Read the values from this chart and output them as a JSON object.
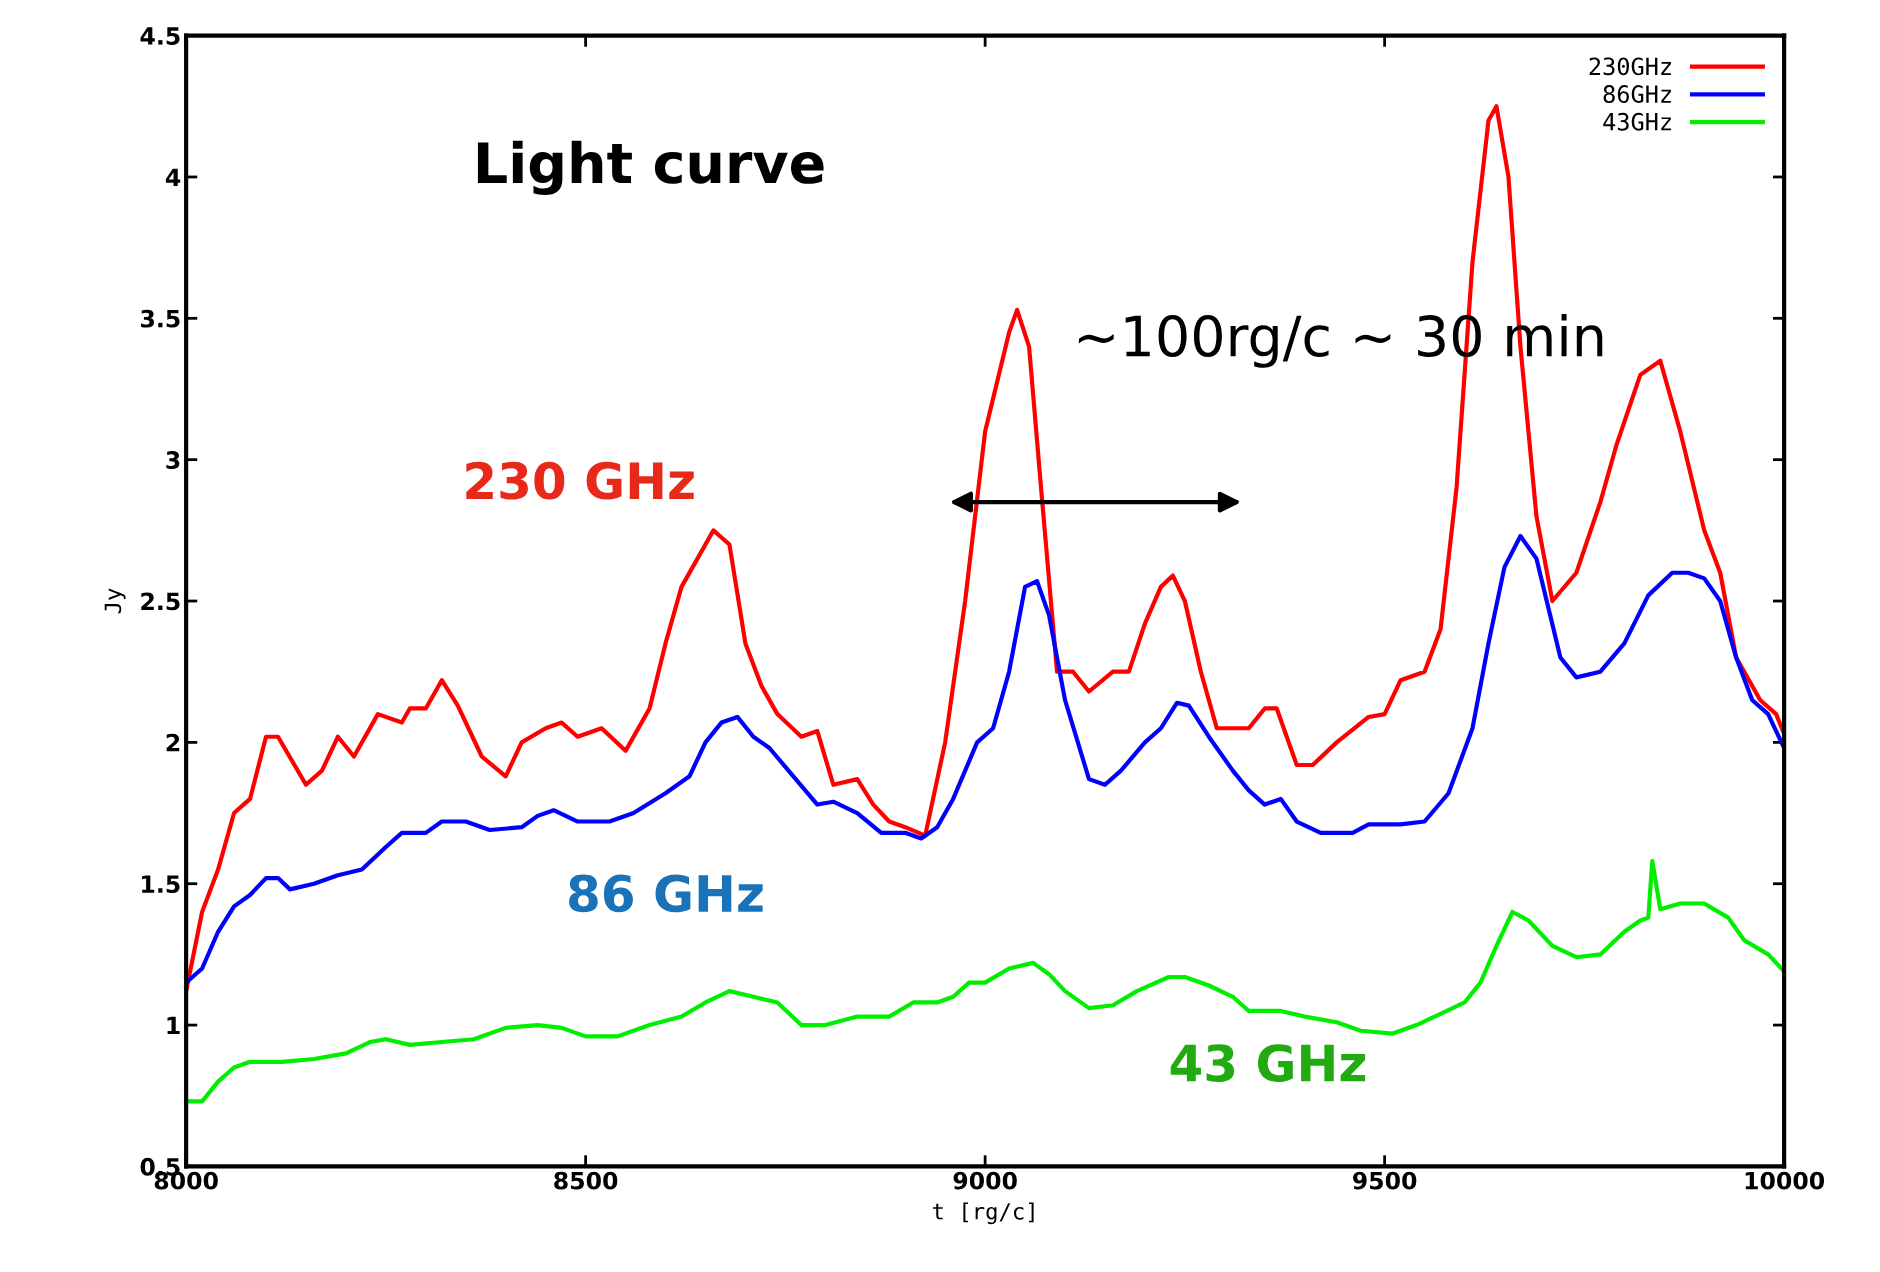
{
  "chart_data": {
    "type": "line",
    "title": "Light curve",
    "xlabel": "t [rg/c]",
    "ylabel": "Jy",
    "xlim": [
      8000,
      10000
    ],
    "xticks": [
      8000,
      8500,
      9000,
      9500,
      10000
    ],
    "ylim": [
      0.5,
      4.5
    ],
    "yticks": [
      0.5,
      1,
      1.5,
      2,
      2.5,
      3,
      3.5,
      4,
      4.5
    ],
    "grid": false,
    "legend": "top right",
    "marker": "none",
    "line_style": "solid",
    "series": [
      {
        "name": "230GHz",
        "color": "#ff0000",
        "x": [
          8000,
          8020,
          8040,
          8060,
          8080,
          8100,
          8115,
          8150,
          8170,
          8190,
          8210,
          8240,
          8270,
          8280,
          8300,
          8320,
          8340,
          8370,
          8400,
          8420,
          8450,
          8470,
          8490,
          8520,
          8550,
          8580,
          8600,
          8620,
          8640,
          8660,
          8680,
          8700,
          8720,
          8740,
          8770,
          8790,
          8810,
          8840,
          8860,
          8880,
          8900,
          8925,
          8950,
          8975,
          9000,
          9030,
          9040,
          9055,
          9070,
          9090,
          9110,
          9130,
          9160,
          9180,
          9200,
          9220,
          9235,
          9250,
          9270,
          9290,
          9310,
          9330,
          9350,
          9365,
          9390,
          9410,
          9440,
          9480,
          9500,
          9520,
          9550,
          9570,
          9590,
          9610,
          9630,
          9640,
          9655,
          9670,
          9690,
          9710,
          9740,
          9770,
          9790,
          9820,
          9845,
          9870,
          9900,
          9920,
          9940,
          9970,
          9990,
          10000
        ],
        "values": [
          1.12,
          1.4,
          1.55,
          1.75,
          1.8,
          2.02,
          2.02,
          1.85,
          1.9,
          2.02,
          1.95,
          2.1,
          2.07,
          2.12,
          2.12,
          2.22,
          2.13,
          1.95,
          1.88,
          2.0,
          2.05,
          2.07,
          2.02,
          2.05,
          1.97,
          2.12,
          2.35,
          2.55,
          2.65,
          2.75,
          2.7,
          2.35,
          2.2,
          2.1,
          2.02,
          2.04,
          1.85,
          1.87,
          1.78,
          1.72,
          1.7,
          1.67,
          2.0,
          2.5,
          3.1,
          3.45,
          3.53,
          3.4,
          2.9,
          2.25,
          2.25,
          2.18,
          2.25,
          2.25,
          2.42,
          2.55,
          2.59,
          2.5,
          2.25,
          2.05,
          2.05,
          2.05,
          2.12,
          2.12,
          1.92,
          1.92,
          2.0,
          2.09,
          2.1,
          2.22,
          2.25,
          2.4,
          2.9,
          3.7,
          4.2,
          4.25,
          4.0,
          3.4,
          2.8,
          2.5,
          2.6,
          2.85,
          3.05,
          3.3,
          3.35,
          3.1,
          2.75,
          2.6,
          2.3,
          2.15,
          2.1,
          2.03
        ]
      },
      {
        "name": "86GHz",
        "color": "#0000ff",
        "x": [
          8000,
          8020,
          8040,
          8060,
          8080,
          8100,
          8115,
          8130,
          8160,
          8190,
          8220,
          8250,
          8270,
          8300,
          8320,
          8350,
          8380,
          8420,
          8440,
          8460,
          8490,
          8530,
          8560,
          8600,
          8630,
          8650,
          8670,
          8690,
          8710,
          8730,
          8760,
          8790,
          8810,
          8840,
          8870,
          8900,
          8920,
          8940,
          8960,
          8990,
          9010,
          9030,
          9050,
          9065,
          9080,
          9100,
          9130,
          9150,
          9170,
          9200,
          9220,
          9240,
          9255,
          9280,
          9310,
          9330,
          9350,
          9370,
          9390,
          9420,
          9460,
          9480,
          9520,
          9550,
          9580,
          9610,
          9630,
          9650,
          9670,
          9690,
          9720,
          9740,
          9770,
          9800,
          9830,
          9860,
          9880,
          9900,
          9920,
          9940,
          9960,
          9980,
          10000
        ],
        "values": [
          1.15,
          1.2,
          1.33,
          1.42,
          1.46,
          1.52,
          1.52,
          1.48,
          1.5,
          1.53,
          1.55,
          1.63,
          1.68,
          1.68,
          1.72,
          1.72,
          1.69,
          1.7,
          1.74,
          1.76,
          1.72,
          1.72,
          1.75,
          1.82,
          1.88,
          2.0,
          2.07,
          2.09,
          2.02,
          1.98,
          1.88,
          1.78,
          1.79,
          1.75,
          1.68,
          1.68,
          1.66,
          1.7,
          1.8,
          2.0,
          2.05,
          2.25,
          2.55,
          2.57,
          2.45,
          2.15,
          1.87,
          1.85,
          1.9,
          2.0,
          2.05,
          2.14,
          2.13,
          2.02,
          1.9,
          1.83,
          1.78,
          1.8,
          1.72,
          1.68,
          1.68,
          1.71,
          1.71,
          1.72,
          1.82,
          2.05,
          2.35,
          2.62,
          2.73,
          2.65,
          2.3,
          2.23,
          2.25,
          2.35,
          2.52,
          2.6,
          2.6,
          2.58,
          2.5,
          2.3,
          2.15,
          2.1,
          1.98
        ]
      },
      {
        "name": "43GHz",
        "color": "#00ee00",
        "x": [
          8000,
          8020,
          8040,
          8060,
          8080,
          8120,
          8160,
          8200,
          8230,
          8250,
          8280,
          8320,
          8360,
          8400,
          8440,
          8470,
          8500,
          8540,
          8580,
          8620,
          8650,
          8680,
          8710,
          8740,
          8770,
          8800,
          8840,
          8880,
          8910,
          8940,
          8960,
          8980,
          9000,
          9030,
          9060,
          9080,
          9100,
          9130,
          9160,
          9190,
          9230,
          9250,
          9280,
          9310,
          9330,
          9370,
          9400,
          9440,
          9470,
          9510,
          9540,
          9570,
          9600,
          9620,
          9640,
          9660,
          9680,
          9710,
          9740,
          9770,
          9800,
          9820,
          9830,
          9835,
          9845,
          9870,
          9900,
          9930,
          9950,
          9980,
          10000
        ],
        "values": [
          0.73,
          0.73,
          0.8,
          0.85,
          0.87,
          0.87,
          0.88,
          0.9,
          0.94,
          0.95,
          0.93,
          0.94,
          0.95,
          0.99,
          1.0,
          0.99,
          0.96,
          0.96,
          1.0,
          1.03,
          1.08,
          1.12,
          1.1,
          1.08,
          1.0,
          1.0,
          1.03,
          1.03,
          1.08,
          1.08,
          1.1,
          1.15,
          1.15,
          1.2,
          1.22,
          1.18,
          1.12,
          1.06,
          1.07,
          1.12,
          1.17,
          1.17,
          1.14,
          1.1,
          1.05,
          1.05,
          1.03,
          1.01,
          0.98,
          0.97,
          1.0,
          1.04,
          1.08,
          1.15,
          1.28,
          1.4,
          1.37,
          1.28,
          1.24,
          1.25,
          1.33,
          1.37,
          1.38,
          1.58,
          1.41,
          1.43,
          1.43,
          1.38,
          1.3,
          1.25,
          1.19
        ]
      }
    ],
    "annotations": [
      "230 GHz",
      "86 GHz",
      "43 GHz",
      "~100rg/c ~ 30 min"
    ]
  }
}
